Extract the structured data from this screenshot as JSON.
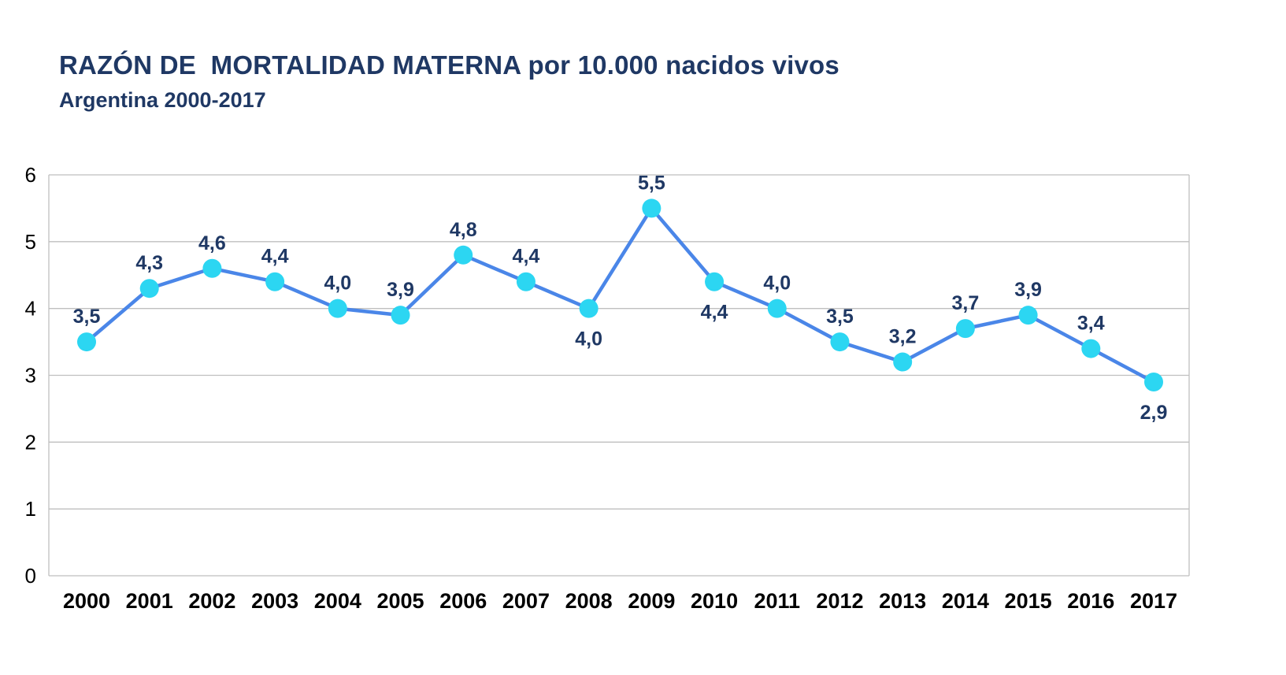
{
  "header": {
    "title": "RAZÓN DE  MORTALIDAD MATERNA por 10.000 nacidos vivos",
    "subtitle": "Argentina 2000-2017",
    "title_color": "#1f3864"
  },
  "chart_data": {
    "type": "line",
    "title": "RAZÓN DE  MORTALIDAD MATERNA por 10.000 nacidos vivos",
    "subtitle": "Argentina 2000-2017",
    "categories": [
      "2000",
      "2001",
      "2002",
      "2003",
      "2004",
      "2005",
      "2006",
      "2007",
      "2008",
      "2009",
      "2010",
      "2011",
      "2012",
      "2013",
      "2014",
      "2015",
      "2016",
      "2017"
    ],
    "series": [
      {
        "name": "Razón de mortalidad materna por 10.000 nacidos vivos",
        "values": [
          3.5,
          4.3,
          4.6,
          4.4,
          4.0,
          3.9,
          4.8,
          4.4,
          4.0,
          5.5,
          4.4,
          4.0,
          3.5,
          3.2,
          3.7,
          3.9,
          3.4,
          2.9
        ]
      }
    ],
    "data_labels": [
      "3,5",
      "4,3",
      "4,6",
      "4,4",
      "4,0",
      "3,9",
      "4,8",
      "4,4",
      "4,0",
      "5,5",
      "4,4",
      "4,0",
      "3,5",
      "3,2",
      "3,7",
      "3,9",
      "3,4",
      "2,9"
    ],
    "label_positions": [
      "above",
      "above",
      "above",
      "above",
      "above",
      "above",
      "above",
      "above",
      "below",
      "above",
      "below",
      "above",
      "above",
      "above",
      "above",
      "above",
      "above",
      "below"
    ],
    "xlabel": "",
    "ylabel": "",
    "ylim": [
      0,
      6
    ],
    "yticks": [
      0,
      1,
      2,
      3,
      4,
      5,
      6
    ],
    "grid": "horizontal",
    "legend": "none",
    "line_color": "#4a86e8",
    "marker_color": "#2cd6f2",
    "label_color": "#1f3864",
    "grid_color": "#bfbfbf",
    "axis_text_color": "#000000"
  }
}
